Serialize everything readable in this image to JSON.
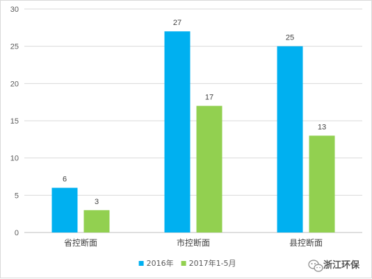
{
  "chart_data": {
    "type": "bar",
    "title": "",
    "xlabel": "",
    "ylabel": "",
    "categories": [
      "省控断面",
      "市控断面",
      "县控断面"
    ],
    "series": [
      {
        "name": "2016年",
        "values": [
          6,
          27,
          25
        ],
        "color": "#00b0f0"
      },
      {
        "name": "2017年1-5月",
        "values": [
          3,
          17,
          13
        ],
        "color": "#92d050"
      }
    ],
    "ylim": [
      0,
      30
    ],
    "yticks": [
      0,
      5,
      10,
      15,
      20,
      25,
      30
    ],
    "grid": true,
    "legend": "bottom"
  },
  "watermark": {
    "text": "浙江环保",
    "icon": "wechat-icon"
  },
  "colors": {
    "grid": "#d9d9d9",
    "axis": "#bfbfbf"
  }
}
